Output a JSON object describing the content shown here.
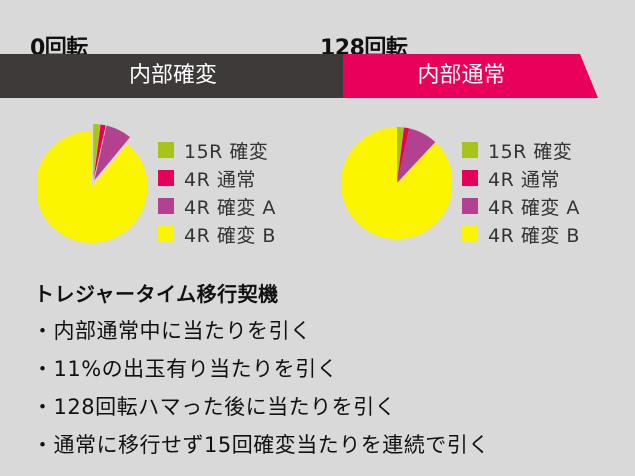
{
  "labels": {
    "left_spin": "0回転",
    "right_spin": "128回転"
  },
  "bars": {
    "left": "内部確変",
    "right": "内部通常"
  },
  "legend_items": [
    "15R 確変",
    "4R 通常",
    "4R 確変 A",
    "4R 確変 B"
  ],
  "colors": {
    "green": "#a8c41b",
    "pink": "#e6005a",
    "purple": "#b2418f",
    "yellow": "#fbf500",
    "dark": "#3d3a39"
  },
  "chart_data": [
    {
      "type": "pie",
      "title": "",
      "categories": [
        "15R 確変",
        "4R 通常",
        "4R 確変 A",
        "4R 確変 B"
      ],
      "values": [
        2,
        1.5,
        7.5,
        89
      ],
      "explode": "4R 確変 B"
    },
    {
      "type": "pie",
      "title": "",
      "categories": [
        "15R 確変",
        "4R 通常",
        "4R 確変 A",
        "4R 確変 B"
      ],
      "values": [
        2,
        1.5,
        8.5,
        88
      ],
      "explode": "none"
    }
  ],
  "section_title": "トレジャータイム移行契機",
  "bullets": [
    "・内部通常中に当たりを引く",
    "・11%の出玉有り当たりを引く",
    "・128回転ハマった後に当たりを引く",
    "・通常に移行せず15回確変当たりを連続で引く"
  ]
}
